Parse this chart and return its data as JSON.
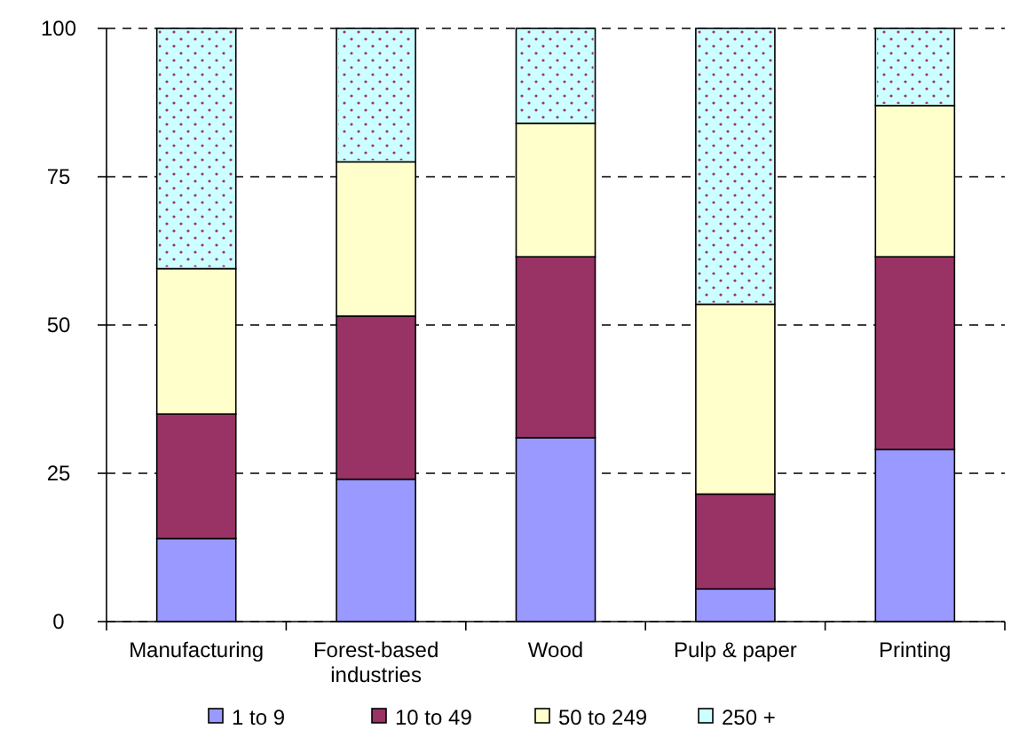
{
  "chart_data": {
    "type": "bar",
    "stacked": true,
    "categories": [
      "Manufacturing",
      "Forest-based industries",
      "Wood",
      "Pulp & paper",
      "Printing"
    ],
    "series": [
      {
        "name": "1 to 9",
        "color": "#9999ff",
        "values": [
          14,
          24,
          31,
          5.5,
          29
        ]
      },
      {
        "name": "10 to 49",
        "color": "#993366",
        "values": [
          21,
          27.5,
          30.5,
          16,
          32.5
        ]
      },
      {
        "name": "50 to 249",
        "color": "#ffffcc",
        "values": [
          24.5,
          26,
          22.5,
          32,
          25.5
        ]
      },
      {
        "name": "250 +",
        "color": "#ccffff",
        "values": [
          40.5,
          22.5,
          16,
          46.5,
          13
        ]
      }
    ],
    "ylim": [
      0,
      100
    ],
    "yticks": [
      0,
      25,
      50,
      75,
      100
    ],
    "grid": "y",
    "legend": "bottom"
  }
}
